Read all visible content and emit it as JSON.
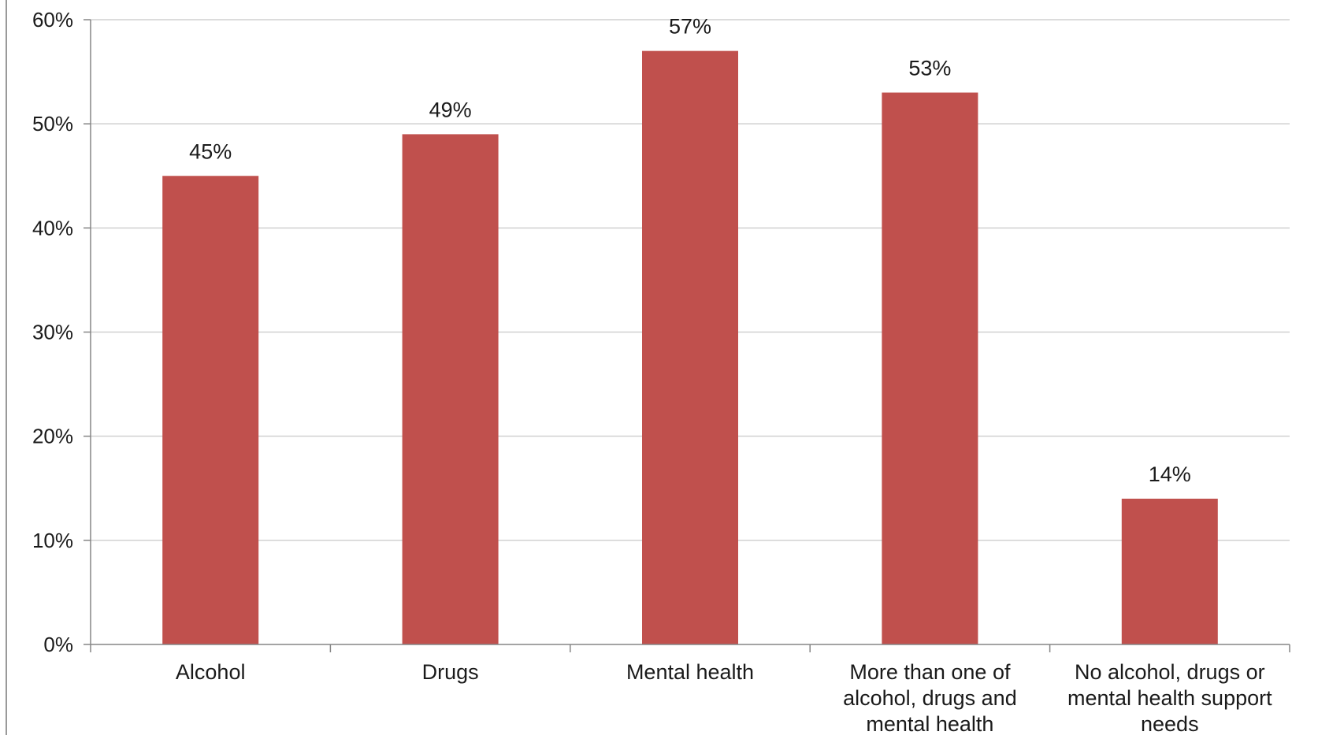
{
  "chart_data": {
    "type": "bar",
    "title": "",
    "xlabel": "",
    "ylabel": "",
    "categories": [
      [
        "Alcohol"
      ],
      [
        "Drugs"
      ],
      [
        "Mental health"
      ],
      [
        "More than one of",
        "alcohol, drugs and",
        "mental health"
      ],
      [
        "No alcohol, drugs or",
        "mental health support",
        "needs"
      ]
    ],
    "values": [
      45,
      49,
      57,
      53,
      14
    ],
    "data_labels": [
      "45%",
      "49%",
      "57%",
      "53%",
      "14%"
    ],
    "ylim": [
      0,
      60
    ],
    "yticks": [
      0,
      10,
      20,
      30,
      40,
      50,
      60
    ],
    "ytick_labels": [
      "0%",
      "10%",
      "20%",
      "30%",
      "40%",
      "50%",
      "60%"
    ],
    "grid": true,
    "legend": "none",
    "bar_color": "#c0504d",
    "grid_color": "#d0d0d0",
    "axis_color": "#868686"
  }
}
